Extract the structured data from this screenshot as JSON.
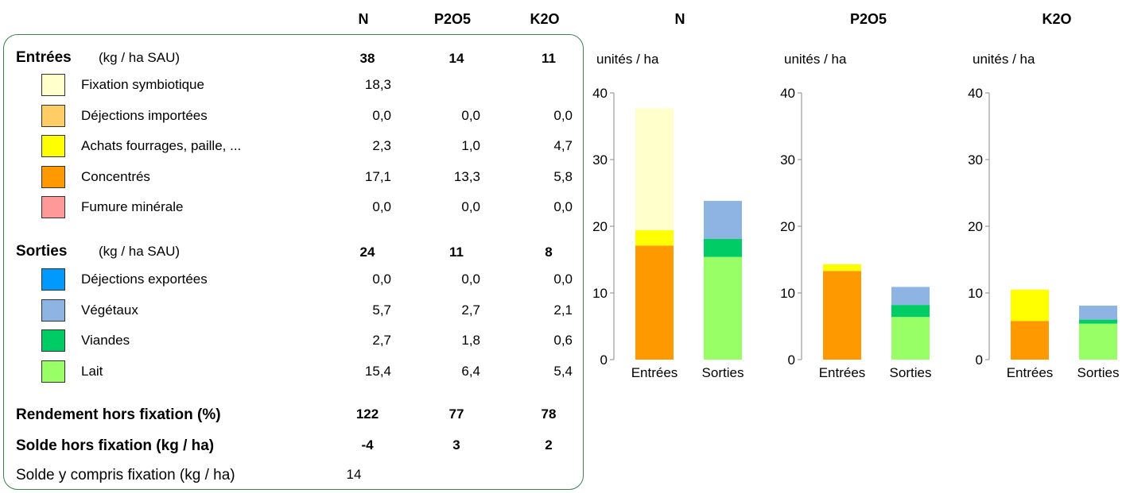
{
  "header": {
    "col_n": "N",
    "col_p": "P2O5",
    "col_k": "K2O",
    "chart_n": "N",
    "chart_p": "P2O5",
    "chart_k": "K2O"
  },
  "entrees": {
    "title": "Entrées",
    "unit": "(kg / ha SAU)",
    "n": "38",
    "p": "14",
    "k": "11",
    "items": [
      {
        "label": "Fixation symbiotique",
        "color": "#FFFFCC",
        "n": "18,3",
        "p": "",
        "k": ""
      },
      {
        "label": "Déjections importées",
        "color": "#FFCC66",
        "n": "0,0",
        "p": "0,0",
        "k": "0,0"
      },
      {
        "label": "Achats fourrages, paille, ...",
        "color": "#FFFF00",
        "n": "2,3",
        "p": "1,0",
        "k": "4,7"
      },
      {
        "label": "Concentrés",
        "color": "#FF9900",
        "n": "17,1",
        "p": "13,3",
        "k": "5,8"
      },
      {
        "label": "Fumure minérale",
        "color": "#FF9999",
        "n": "0,0",
        "p": "0,0",
        "k": "0,0"
      }
    ]
  },
  "sorties": {
    "title": "Sorties",
    "unit": "(kg / ha SAU)",
    "n": "24",
    "p": "11",
    "k": "8",
    "items": [
      {
        "label": "Déjections exportées",
        "color": "#0099FF",
        "n": "0,0",
        "p": "0,0",
        "k": "0,0"
      },
      {
        "label": "Végétaux",
        "color": "#8EB4E3",
        "n": "5,7",
        "p": "2,7",
        "k": "2,1"
      },
      {
        "label": "Viandes",
        "color": "#00CC66",
        "n": "2,7",
        "p": "1,8",
        "k": "0,6"
      },
      {
        "label": "Lait",
        "color": "#99FF66",
        "n": "15,4",
        "p": "6,4",
        "k": "5,4"
      }
    ]
  },
  "rendement": {
    "label": "Rendement hors fixation (%)",
    "n": "122",
    "p": "77",
    "k": "78"
  },
  "solde": {
    "label": "Solde hors fixation (kg / ha)",
    "n": "-4",
    "p": "3",
    "k": "2"
  },
  "solde_fix": {
    "label": "Solde y compris fixation (kg / ha)",
    "n": "14"
  },
  "chart_data": [
    {
      "type": "bar",
      "stacked": true,
      "title": "N",
      "ylabel": "unités / ha",
      "ylim": [
        0,
        40
      ],
      "yticks": [
        0,
        10,
        20,
        30,
        40
      ],
      "categories": [
        "Entrées",
        "Sorties"
      ],
      "series": [
        {
          "name": "Concentrés",
          "color": "#FF9900",
          "values": [
            17.1,
            0
          ]
        },
        {
          "name": "Achats fourrages, paille, ...",
          "color": "#FFFF00",
          "values": [
            2.3,
            0
          ]
        },
        {
          "name": "Fixation symbiotique",
          "color": "#FFFFCC",
          "values": [
            18.3,
            0
          ]
        },
        {
          "name": "Lait",
          "color": "#99FF66",
          "values": [
            0,
            15.4
          ]
        },
        {
          "name": "Viandes",
          "color": "#00CC66",
          "values": [
            0,
            2.7
          ]
        },
        {
          "name": "Végétaux",
          "color": "#8EB4E3",
          "values": [
            0,
            5.7
          ]
        }
      ]
    },
    {
      "type": "bar",
      "stacked": true,
      "title": "P2O5",
      "ylabel": "unités / ha",
      "ylim": [
        0,
        40
      ],
      "yticks": [
        0,
        10,
        20,
        30,
        40
      ],
      "categories": [
        "Entrées",
        "Sorties"
      ],
      "series": [
        {
          "name": "Concentrés",
          "color": "#FF9900",
          "values": [
            13.3,
            0
          ]
        },
        {
          "name": "Achats fourrages, paille, ...",
          "color": "#FFFF00",
          "values": [
            1.0,
            0
          ]
        },
        {
          "name": "Lait",
          "color": "#99FF66",
          "values": [
            0,
            6.4
          ]
        },
        {
          "name": "Viandes",
          "color": "#00CC66",
          "values": [
            0,
            1.8
          ]
        },
        {
          "name": "Végétaux",
          "color": "#8EB4E3",
          "values": [
            0,
            2.7
          ]
        }
      ]
    },
    {
      "type": "bar",
      "stacked": true,
      "title": "K2O",
      "ylabel": "unités / ha",
      "ylim": [
        0,
        40
      ],
      "yticks": [
        0,
        10,
        20,
        30,
        40
      ],
      "categories": [
        "Entrées",
        "Sorties"
      ],
      "series": [
        {
          "name": "Concentrés",
          "color": "#FF9900",
          "values": [
            5.8,
            0
          ]
        },
        {
          "name": "Achats fourrages, paille, ...",
          "color": "#FFFF00",
          "values": [
            4.7,
            0
          ]
        },
        {
          "name": "Lait",
          "color": "#99FF66",
          "values": [
            0,
            5.4
          ]
        },
        {
          "name": "Viandes",
          "color": "#00CC66",
          "values": [
            0,
            0.6
          ]
        },
        {
          "name": "Végétaux",
          "color": "#8EB4E3",
          "values": [
            0,
            2.1
          ]
        }
      ]
    }
  ]
}
